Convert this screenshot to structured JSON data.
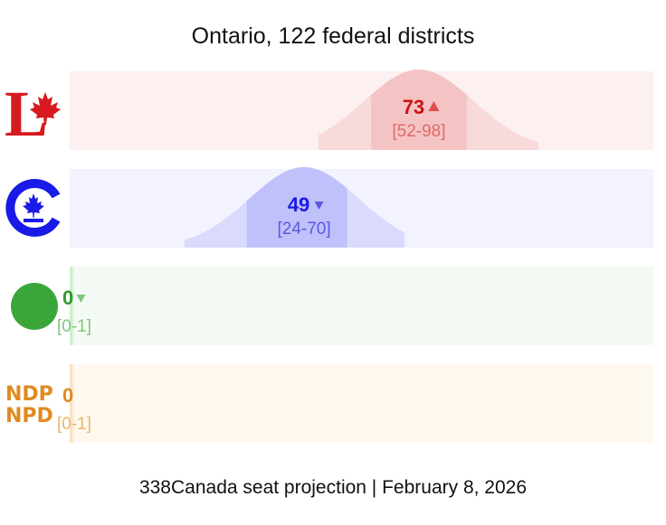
{
  "chart_data": {
    "type": "area",
    "title": "Ontario, 122 federal districts",
    "footer": "338Canada seat projection | February 8, 2026",
    "xlim": [
      0,
      122
    ],
    "series": [
      {
        "name": "Liberal",
        "seats": 73,
        "range": "[52-98]",
        "low": 52,
        "high": 98,
        "mid_low": 63,
        "mid_high": 83,
        "trend": "up",
        "color": "#cc1111",
        "range_color": "#e06a6a",
        "band_color": "#f4c4c4",
        "outer_color": "#f8dada",
        "bg_color": "#fdf0f0"
      },
      {
        "name": "Conservative",
        "seats": 49,
        "range": "[24-70]",
        "low": 24,
        "high": 70,
        "mid_low": 37,
        "mid_high": 58,
        "trend": "down",
        "color": "#1a1ae6",
        "range_color": "#5a5adf",
        "band_color": "#c0c0fb",
        "outer_color": "#dadafc",
        "bg_color": "#f3f3ff"
      },
      {
        "name": "Green",
        "seats": 0,
        "range": "[0-1]",
        "low": 0,
        "high": 1,
        "mid_low": 0,
        "mid_high": 1,
        "trend": "down",
        "color": "#2e9a2e",
        "range_color": "#7ec87e",
        "band_color": "#cdeecd",
        "outer_color": "#e2f5e2",
        "bg_color": "#f4faf4"
      },
      {
        "name": "NDP",
        "seats": 0,
        "range": "[0-1]",
        "low": 0,
        "high": 1,
        "mid_low": 0,
        "mid_high": 1,
        "trend": "none",
        "color": "#e08a20",
        "range_color": "#eeb46a",
        "band_color": "#fbe2c4",
        "outer_color": "#fdeedc",
        "bg_color": "#fff8ee"
      }
    ]
  },
  "logos": {
    "liberal": {
      "letter": "L"
    },
    "ndp": {
      "line1": "NDP",
      "line2": "NPD"
    }
  }
}
